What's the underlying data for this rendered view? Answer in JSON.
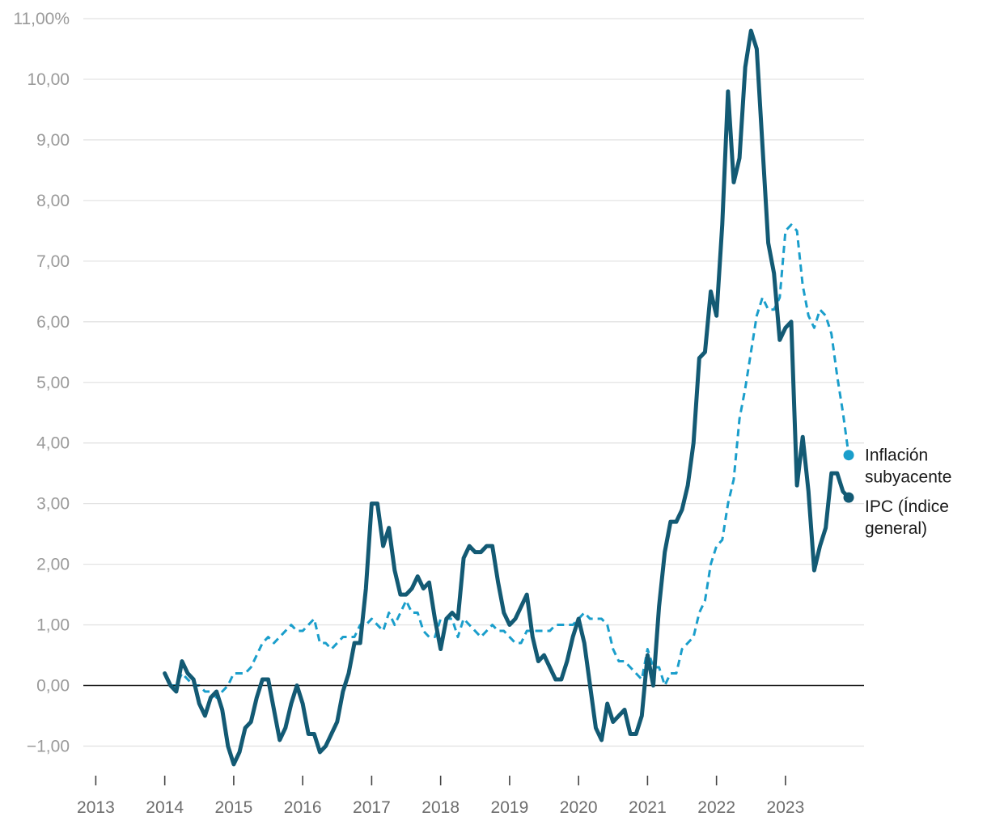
{
  "chart_data": {
    "type": "line",
    "title": "",
    "xlabel": "",
    "ylabel": "",
    "ylim": [
      -1.4,
      11
    ],
    "xlim": [
      2013,
      2024.2
    ],
    "y_ticks": [
      {
        "value": -1,
        "label": "−1,00"
      },
      {
        "value": 0,
        "label": "0,00"
      },
      {
        "value": 1,
        "label": "1,00"
      },
      {
        "value": 2,
        "label": "2,00"
      },
      {
        "value": 3,
        "label": "3,00"
      },
      {
        "value": 4,
        "label": "4,00"
      },
      {
        "value": 5,
        "label": "5,00"
      },
      {
        "value": 6,
        "label": "6,00"
      },
      {
        "value": 7,
        "label": "7,00"
      },
      {
        "value": 8,
        "label": "8,00"
      },
      {
        "value": 9,
        "label": "9,00"
      },
      {
        "value": 10,
        "label": "10,00"
      },
      {
        "value": 11,
        "label": "11,00%"
      }
    ],
    "x_ticks": [
      "2013",
      "2014",
      "2015",
      "2016",
      "2017",
      "2018",
      "2019",
      "2020",
      "2021",
      "2022",
      "2023"
    ],
    "x_start": 2014.0,
    "x_step_months": 1,
    "colors": {
      "ipc": "#135a74",
      "core": "#1a9ecb",
      "zero_line": "#1a1a1a"
    },
    "series": [
      {
        "name": "IPC (Índice general)",
        "style": "solid",
        "values": [
          0.2,
          0.0,
          -0.1,
          0.4,
          0.2,
          0.1,
          -0.3,
          -0.5,
          -0.2,
          -0.1,
          -0.4,
          -1.0,
          -1.3,
          -1.1,
          -0.7,
          -0.6,
          -0.2,
          0.1,
          0.1,
          -0.4,
          -0.9,
          -0.7,
          -0.3,
          0.0,
          -0.3,
          -0.8,
          -0.8,
          -1.1,
          -1.0,
          -0.8,
          -0.6,
          -0.1,
          0.2,
          0.7,
          0.7,
          1.6,
          3.0,
          3.0,
          2.3,
          2.6,
          1.9,
          1.5,
          1.5,
          1.6,
          1.8,
          1.6,
          1.7,
          1.1,
          0.6,
          1.1,
          1.2,
          1.1,
          2.1,
          2.3,
          2.2,
          2.2,
          2.3,
          2.3,
          1.7,
          1.2,
          1.0,
          1.1,
          1.3,
          1.5,
          0.8,
          0.4,
          0.5,
          0.3,
          0.1,
          0.1,
          0.4,
          0.8,
          1.1,
          0.7,
          0.0,
          -0.7,
          -0.9,
          -0.3,
          -0.6,
          -0.5,
          -0.4,
          -0.8,
          -0.8,
          -0.5,
          0.5,
          0.0,
          1.3,
          2.2,
          2.7,
          2.7,
          2.9,
          3.3,
          4.0,
          5.4,
          5.5,
          6.5,
          6.1,
          7.6,
          9.8,
          8.3,
          8.7,
          10.2,
          10.8,
          10.5,
          8.9,
          7.3,
          6.8,
          5.7,
          5.9,
          6.0,
          3.3,
          4.1,
          3.2,
          1.9,
          2.3,
          2.6,
          3.5,
          3.5,
          3.2,
          3.1
        ]
      },
      {
        "name": "Inflación subyacente",
        "style": "dashed",
        "values": [
          0.2,
          0.0,
          0.0,
          0.2,
          0.1,
          0.0,
          0.0,
          -0.1,
          -0.1,
          -0.2,
          -0.1,
          0.0,
          0.2,
          0.2,
          0.2,
          0.3,
          0.5,
          0.7,
          0.8,
          0.7,
          0.8,
          0.9,
          1.0,
          0.9,
          0.9,
          1.0,
          1.1,
          0.7,
          0.7,
          0.6,
          0.7,
          0.8,
          0.8,
          0.8,
          1.0,
          1.0,
          1.1,
          1.0,
          0.9,
          1.2,
          1.0,
          1.2,
          1.4,
          1.2,
          1.2,
          0.9,
          0.8,
          0.8,
          1.1,
          1.1,
          1.1,
          0.8,
          1.1,
          1.0,
          0.9,
          0.8,
          0.9,
          1.0,
          0.9,
          0.9,
          0.8,
          0.7,
          0.7,
          0.9,
          0.9,
          0.9,
          0.9,
          0.9,
          1.0,
          1.0,
          1.0,
          1.0,
          1.1,
          1.2,
          1.1,
          1.1,
          1.1,
          1.0,
          0.6,
          0.4,
          0.4,
          0.3,
          0.2,
          0.1,
          0.6,
          0.3,
          0.3,
          0.0,
          0.2,
          0.2,
          0.6,
          0.7,
          0.8,
          1.2,
          1.4,
          2.0,
          2.3,
          2.4,
          3.0,
          3.4,
          4.4,
          4.9,
          5.5,
          6.1,
          6.4,
          6.2,
          6.2,
          6.4,
          7.5,
          7.6,
          7.5,
          6.6,
          6.1,
          5.9,
          6.2,
          6.1,
          5.8,
          5.1,
          4.5,
          3.8
        ]
      }
    ],
    "legend": [
      {
        "series": "Inflación subyacente",
        "lines": [
          "Inflación",
          "subyacente"
        ]
      },
      {
        "series": "IPC (Índice general)",
        "lines": [
          "IPC (Índice",
          "general)"
        ]
      }
    ]
  }
}
